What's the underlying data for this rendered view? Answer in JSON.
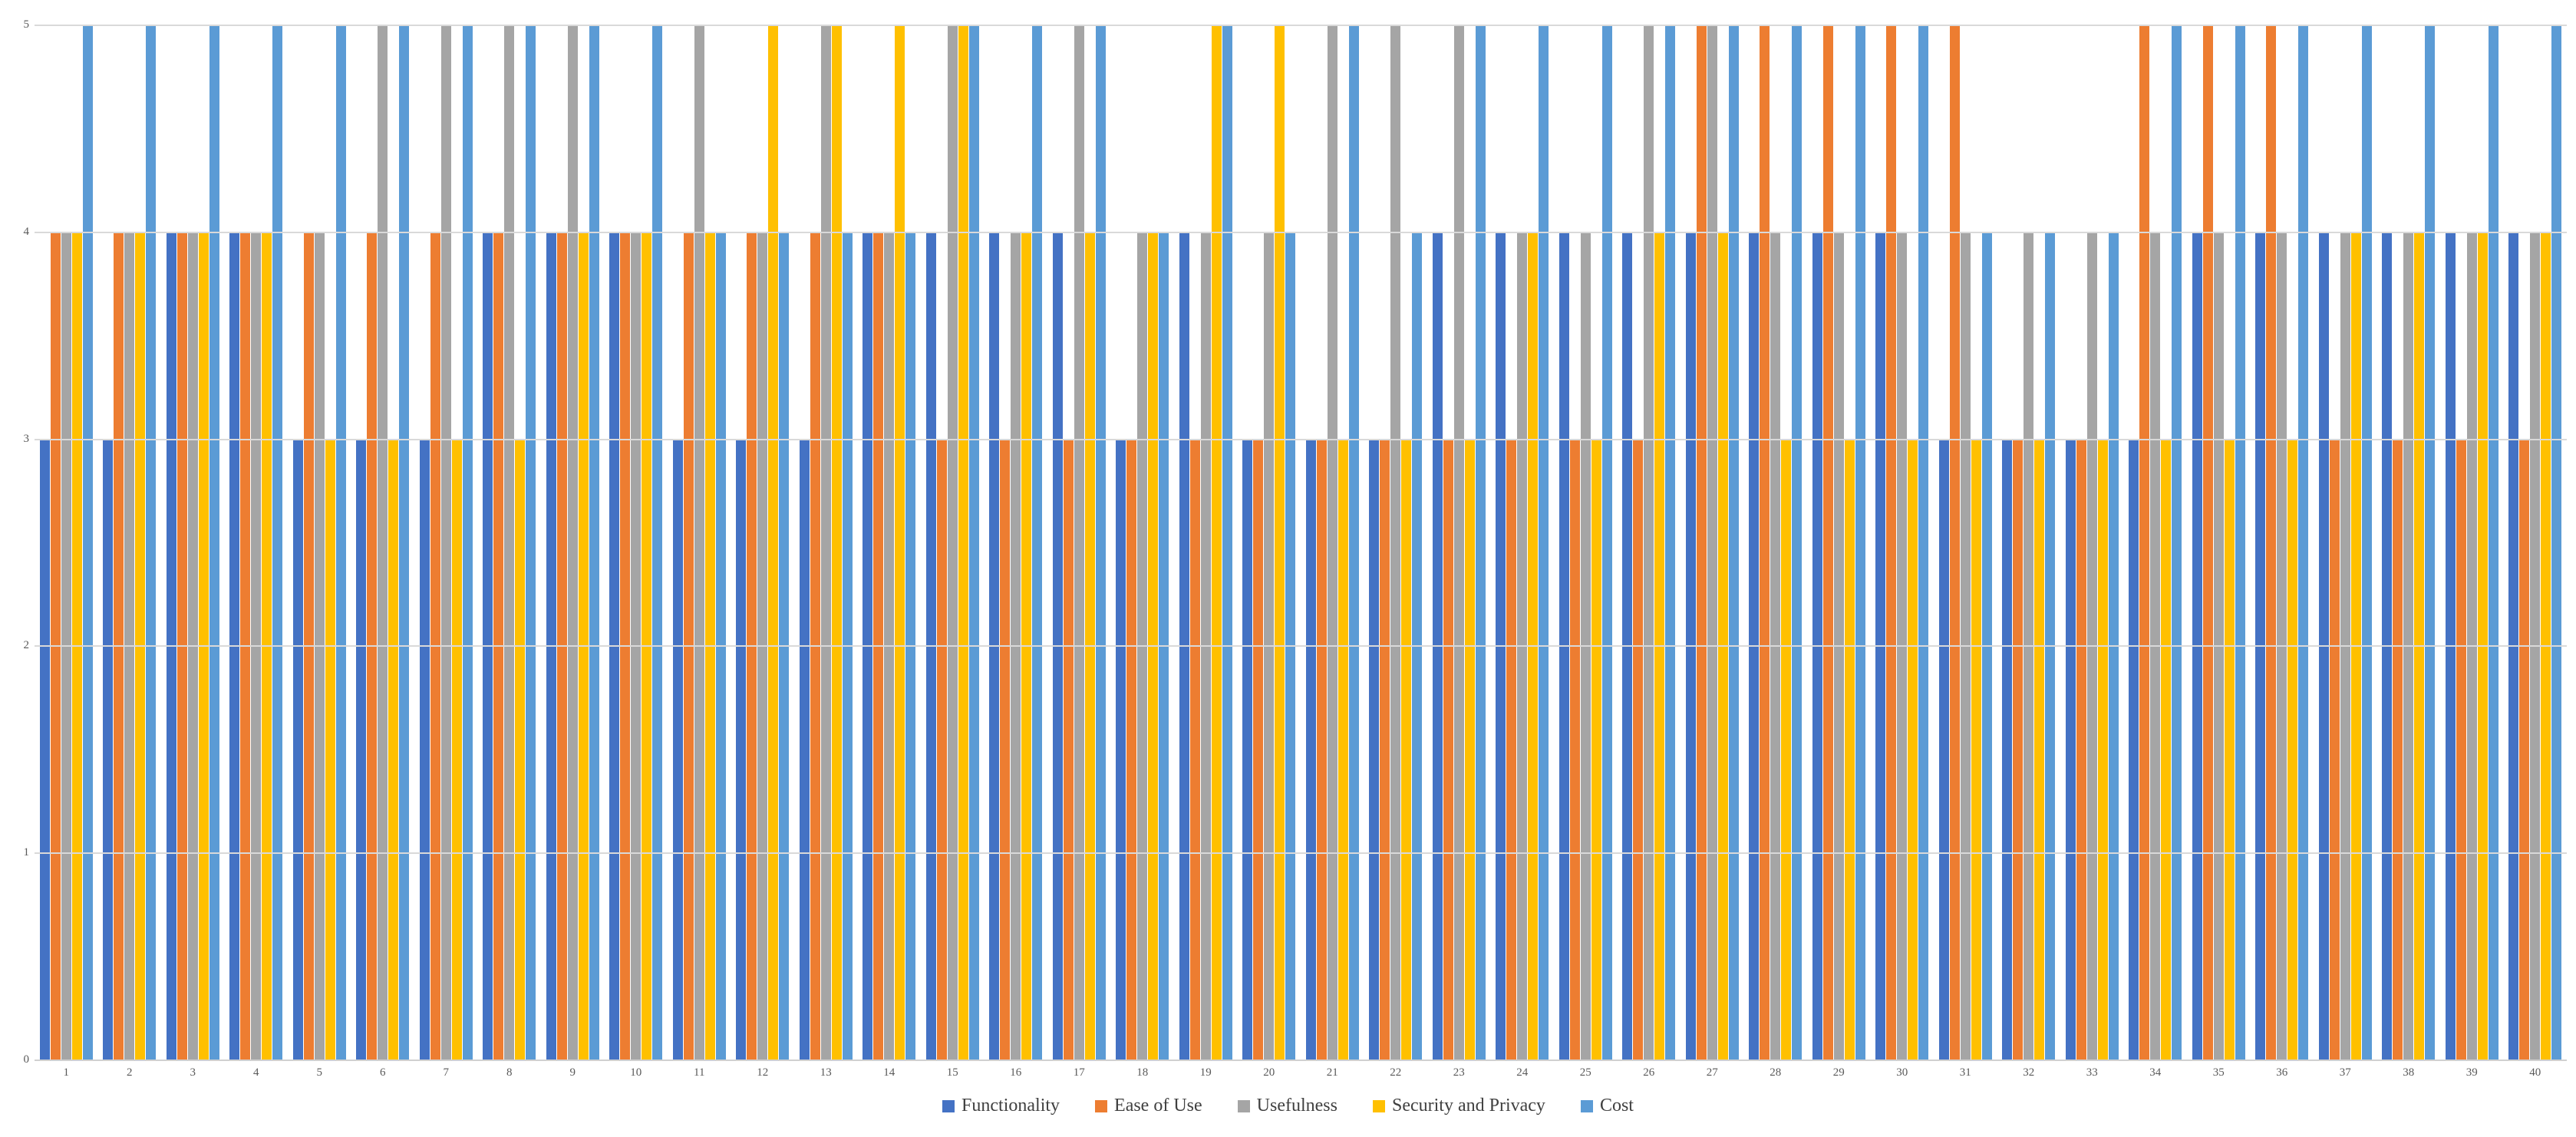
{
  "chart_data": {
    "type": "bar",
    "title": "",
    "xlabel": "",
    "ylabel": "",
    "ylim": [
      0,
      5
    ],
    "yticks": [
      0,
      1,
      2,
      3,
      4,
      5
    ],
    "grid": true,
    "legend_position": "bottom",
    "categories": [
      "1",
      "2",
      "3",
      "4",
      "5",
      "6",
      "7",
      "8",
      "9",
      "10",
      "11",
      "12",
      "13",
      "14",
      "15",
      "16",
      "17",
      "18",
      "19",
      "20",
      "21",
      "22",
      "23",
      "24",
      "25",
      "26",
      "27",
      "28",
      "29",
      "30",
      "31",
      "32",
      "33",
      "34",
      "35",
      "36",
      "37",
      "38",
      "39",
      "40"
    ],
    "series": [
      {
        "name": "Functionality",
        "color": "#4472C4",
        "values": [
          3,
          3,
          4,
          4,
          3,
          3,
          3,
          4,
          4,
          4,
          3,
          3,
          3,
          4,
          4,
          4,
          4,
          3,
          4,
          3,
          3,
          3,
          4,
          4,
          4,
          4,
          4,
          4,
          4,
          4,
          3,
          3,
          3,
          3,
          4,
          4,
          4,
          4,
          4,
          4
        ]
      },
      {
        "name": "Ease of Use",
        "color": "#ED7D31",
        "values": [
          4,
          4,
          4,
          4,
          4,
          4,
          4,
          4,
          4,
          4,
          4,
          4,
          4,
          4,
          3,
          3,
          3,
          3,
          3,
          3,
          3,
          3,
          3,
          3,
          3,
          3,
          5,
          5,
          5,
          5,
          5,
          3,
          3,
          5,
          5,
          5,
          3,
          3,
          3,
          3
        ]
      },
      {
        "name": "Usefulness",
        "color": "#A5A5A5",
        "values": [
          4,
          4,
          4,
          4,
          4,
          5,
          5,
          5,
          5,
          4,
          5,
          4,
          5,
          4,
          5,
          4,
          5,
          4,
          4,
          4,
          5,
          5,
          5,
          4,
          4,
          5,
          5,
          4,
          4,
          4,
          4,
          4,
          4,
          4,
          4,
          4,
          4,
          4,
          4,
          4
        ]
      },
      {
        "name": "Security and Privacy",
        "color": "#FFC000",
        "values": [
          4,
          4,
          4,
          4,
          3,
          3,
          3,
          3,
          4,
          4,
          4,
          5,
          5,
          5,
          5,
          4,
          4,
          4,
          5,
          5,
          3,
          3,
          3,
          4,
          3,
          4,
          4,
          3,
          3,
          3,
          3,
          3,
          3,
          3,
          3,
          3,
          4,
          4,
          4,
          4
        ]
      },
      {
        "name": "Cost",
        "color": "#5B9BD5",
        "values": [
          5,
          5,
          5,
          5,
          5,
          5,
          5,
          5,
          5,
          5,
          4,
          4,
          4,
          4,
          5,
          5,
          5,
          4,
          5,
          4,
          5,
          4,
          5,
          5,
          5,
          5,
          5,
          5,
          5,
          5,
          4,
          4,
          4,
          5,
          5,
          5,
          5,
          5,
          5,
          5
        ]
      }
    ]
  },
  "axis": {
    "tick_color": "#595959",
    "gridline_color": "#d9d9d9"
  }
}
